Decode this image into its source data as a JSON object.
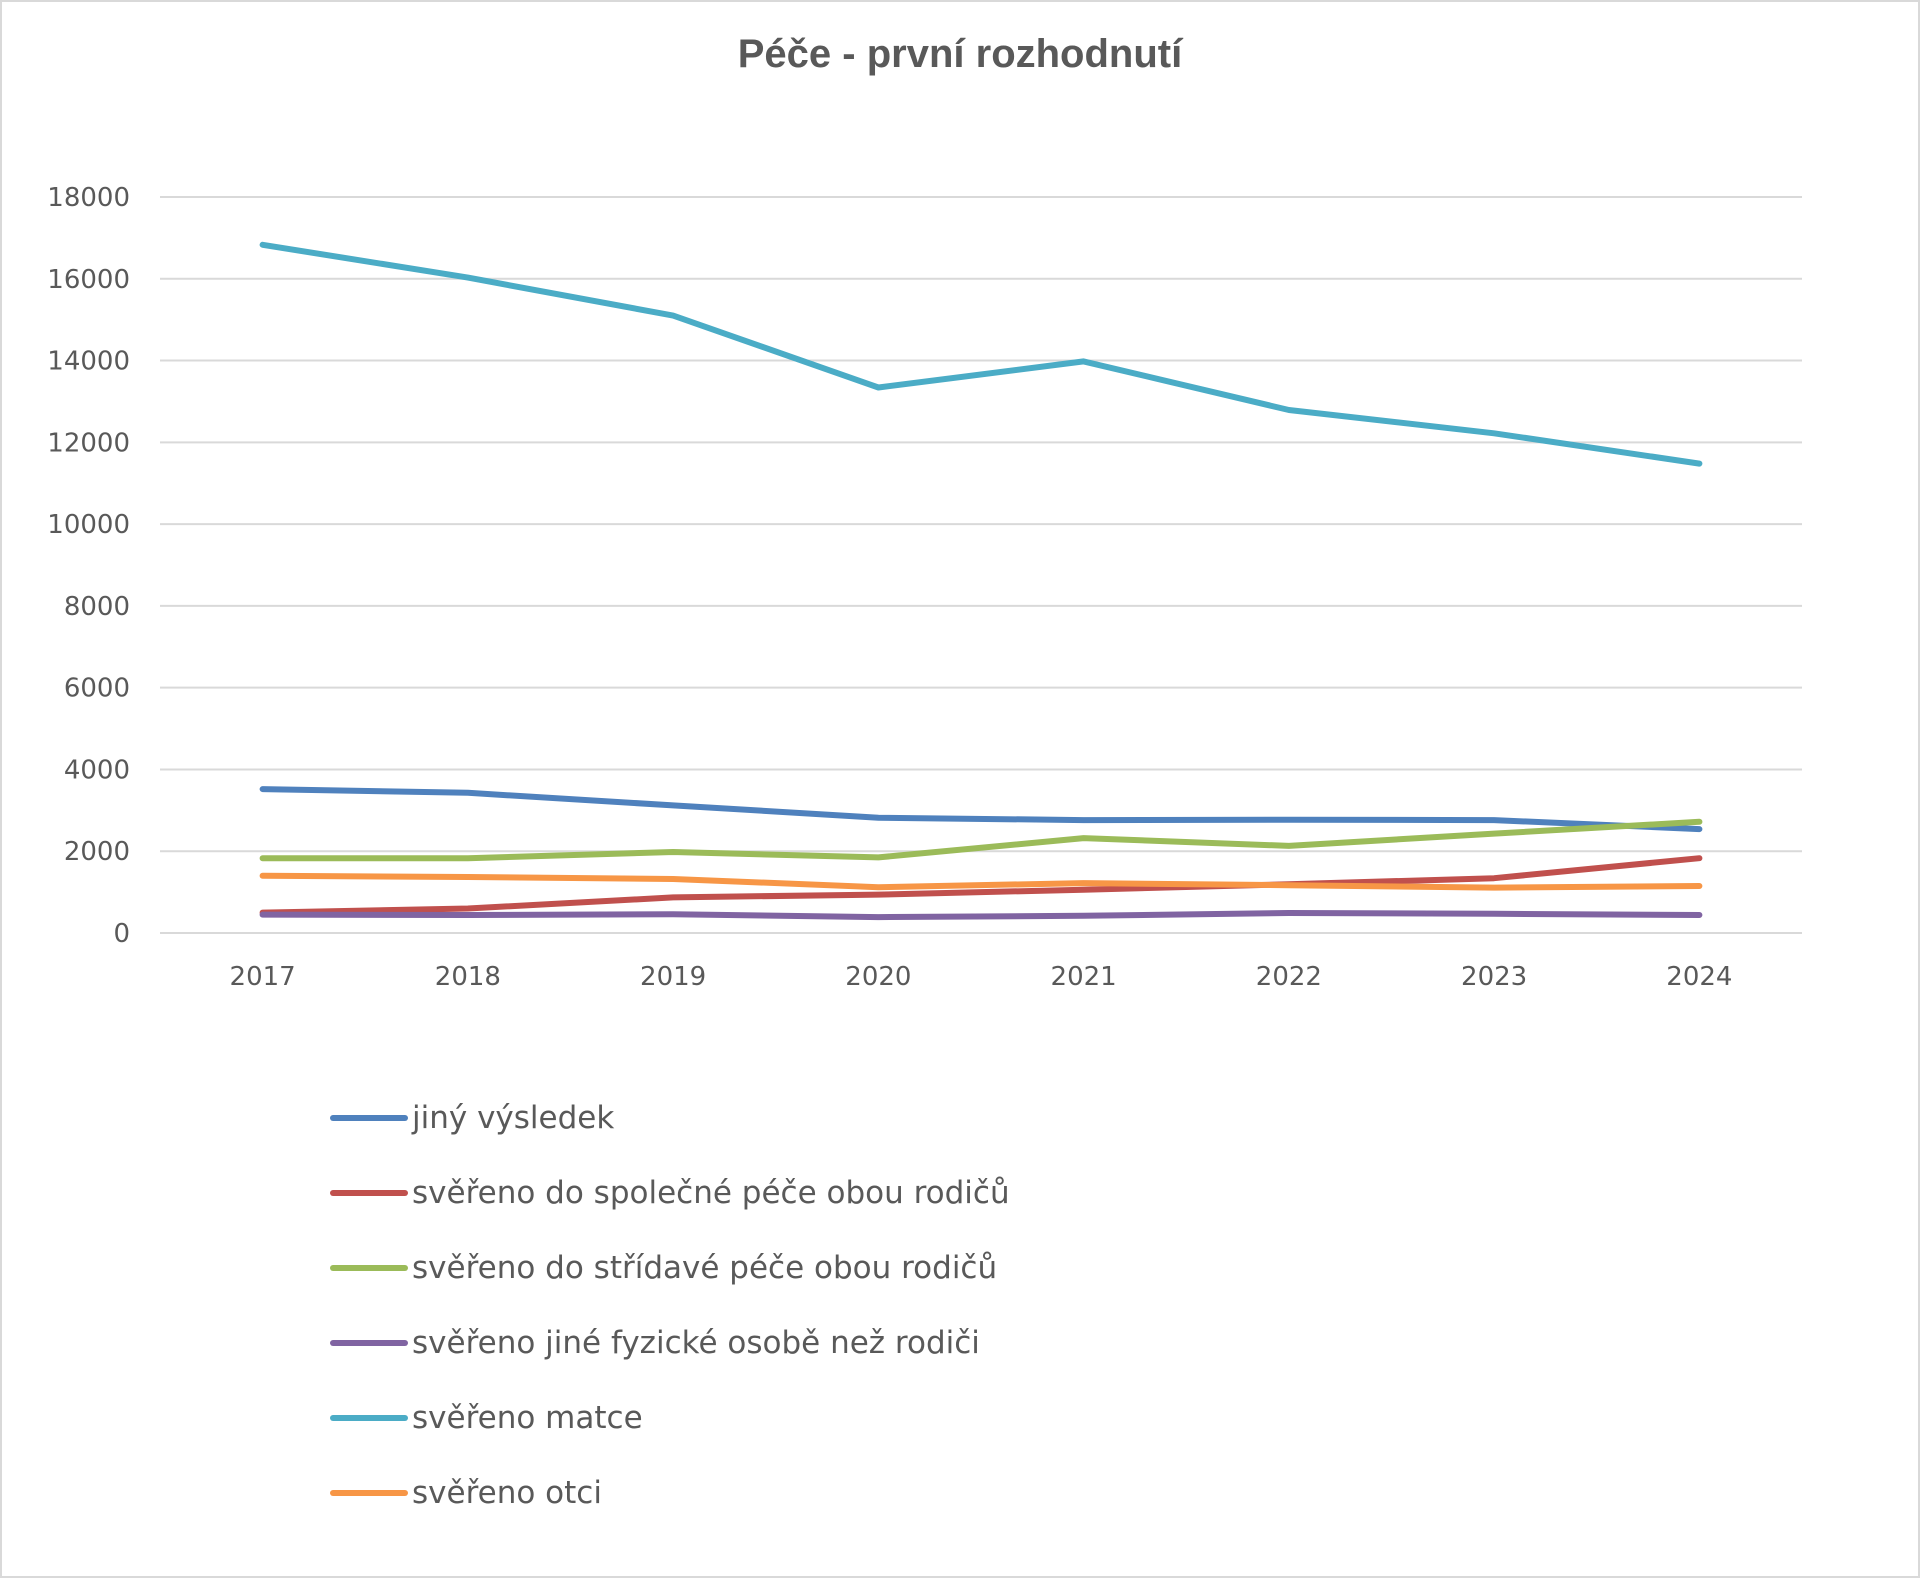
{
  "chart_data": {
    "type": "line",
    "title": "Péče - první rozhodnutí",
    "xlabel": "",
    "ylabel": "",
    "x": [
      "2017",
      "2018",
      "2019",
      "2020",
      "2021",
      "2022",
      "2023",
      "2024"
    ],
    "ylim": [
      0,
      18000
    ],
    "yticks": [
      "0",
      "2000",
      "4000",
      "6000",
      "8000",
      "10000",
      "12000",
      "14000",
      "16000",
      "18000"
    ],
    "grid": true,
    "legend_position": "bottom",
    "series": [
      {
        "name": "jiný výsledek",
        "color": "#4f81bd",
        "values": [
          3520,
          3430,
          3120,
          2820,
          2760,
          2770,
          2760,
          2540
        ]
      },
      {
        "name": "svěřeno do společné péče obou rodičů",
        "color": "#c0504d",
        "values": [
          500,
          600,
          870,
          940,
          1060,
          1190,
          1340,
          1830
        ]
      },
      {
        "name": "svěřeno do střídavé péče obou rodičů",
        "color": "#9bbb59",
        "values": [
          1830,
          1830,
          1980,
          1850,
          2320,
          2130,
          2430,
          2720
        ]
      },
      {
        "name": "svěřeno jiné fyzické osobě než rodiči",
        "color": "#8064a2",
        "values": [
          450,
          440,
          460,
          390,
          420,
          490,
          470,
          440
        ]
      },
      {
        "name": "svěřeno matce",
        "color": "#4bacc6",
        "values": [
          16830,
          16030,
          15100,
          13340,
          13980,
          12790,
          12220,
          11480
        ]
      },
      {
        "name": "svěřeno otci",
        "color": "#f79646",
        "values": [
          1400,
          1370,
          1320,
          1120,
          1220,
          1170,
          1110,
          1150
        ]
      }
    ]
  }
}
